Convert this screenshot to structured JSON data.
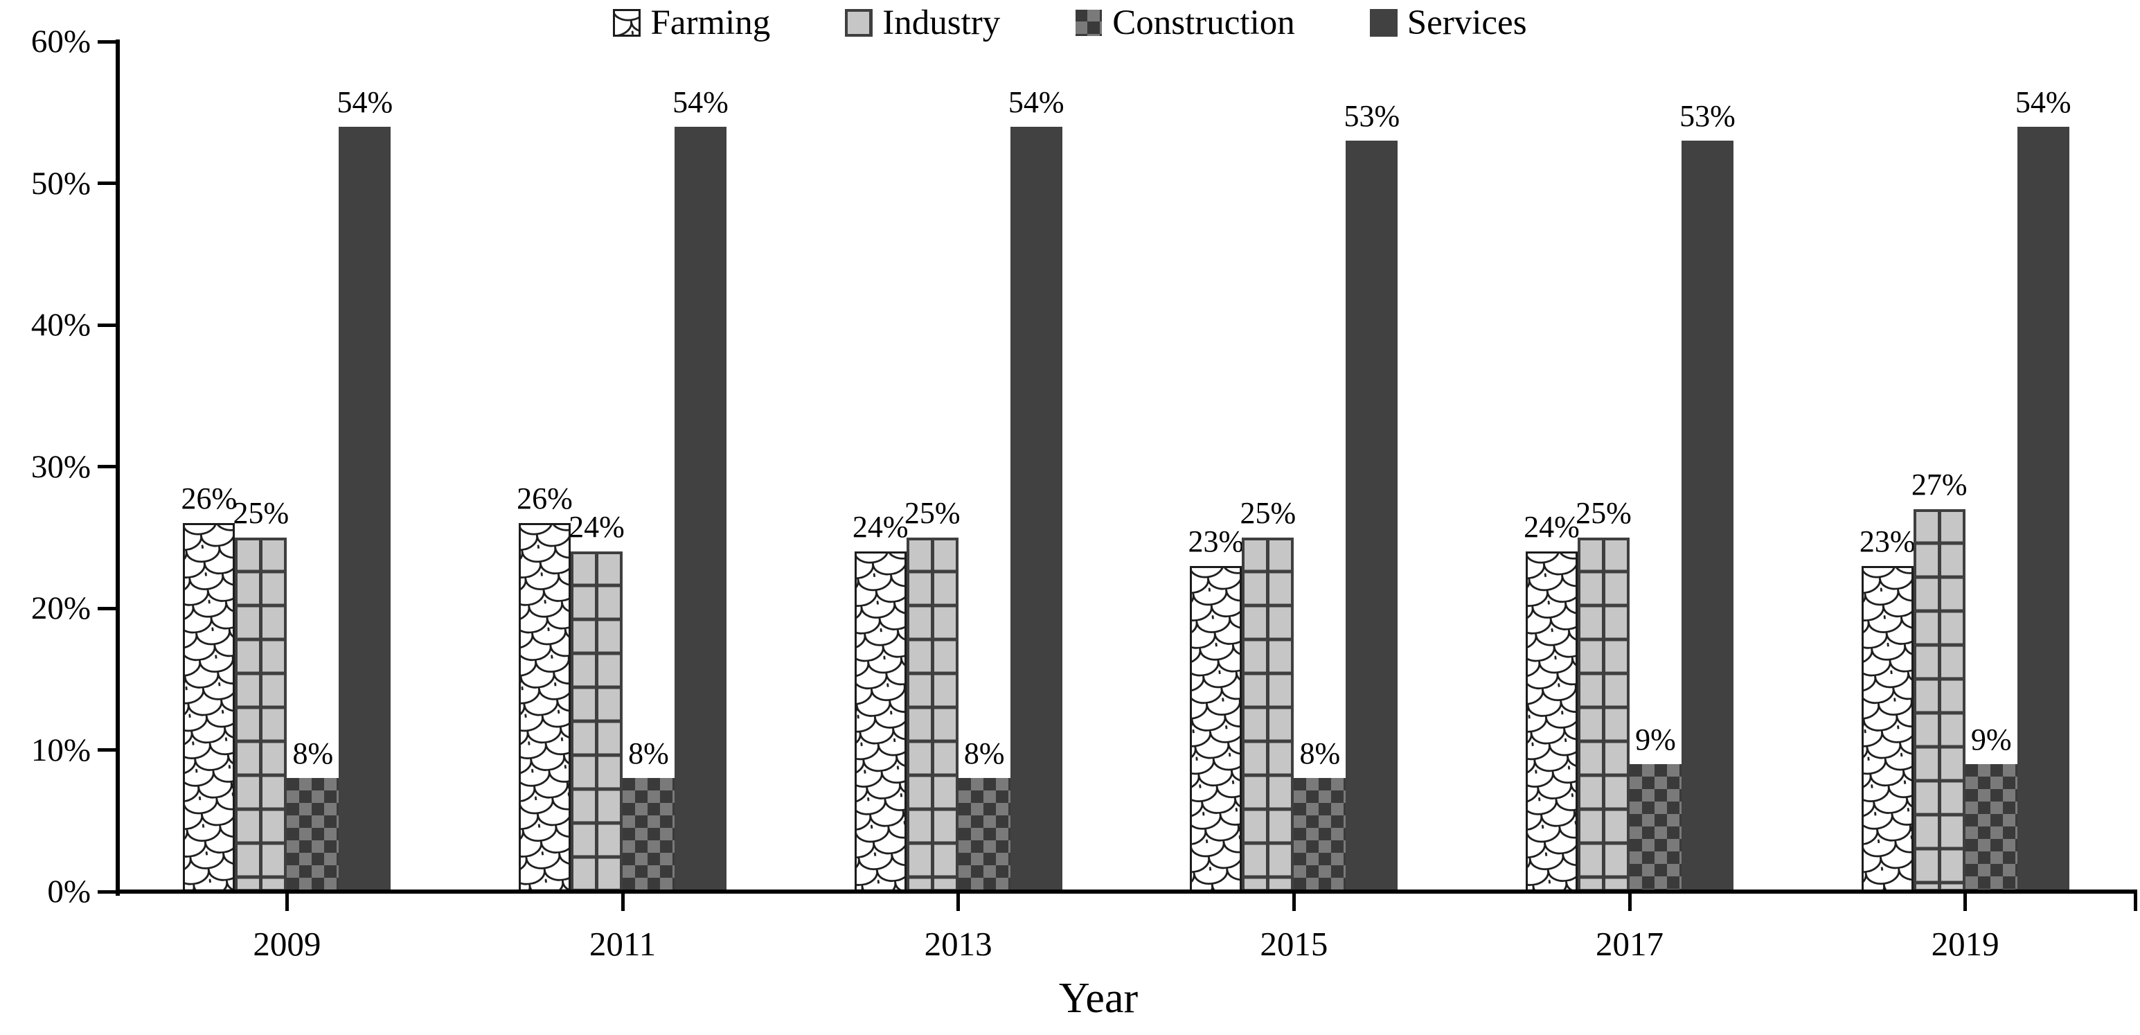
{
  "chart_data": {
    "type": "bar",
    "title": "",
    "xlabel": "Year",
    "ylabel": "",
    "ylim": [
      0,
      60
    ],
    "ytick_step": 10,
    "ytick_labels": [
      "0%",
      "10%",
      "20%",
      "30%",
      "40%",
      "50%",
      "60%"
    ],
    "categories": [
      "2009",
      "2011",
      "2013",
      "2015",
      "2017",
      "2019"
    ],
    "legend_position": "top",
    "grid": "off",
    "series": [
      {
        "name": "Farming",
        "pattern": "shingle",
        "values": [
          26,
          26,
          24,
          23,
          24,
          23
        ],
        "labels": [
          "26%",
          "26%",
          "24%",
          "23%",
          "24%",
          "23%"
        ]
      },
      {
        "name": "Industry",
        "pattern": "grid",
        "values": [
          25,
          24,
          25,
          25,
          25,
          27
        ],
        "labels": [
          "25%",
          "24%",
          "25%",
          "25%",
          "25%",
          "27%"
        ]
      },
      {
        "name": "Construction",
        "pattern": "checker",
        "values": [
          8,
          8,
          8,
          8,
          9,
          9
        ],
        "labels": [
          "8%",
          "8%",
          "8%",
          "8%",
          "9%",
          "9%"
        ]
      },
      {
        "name": "Services",
        "pattern": "solid",
        "values": [
          54,
          54,
          54,
          53,
          53,
          54
        ],
        "labels": [
          "54%",
          "54%",
          "54%",
          "53%",
          "53%",
          "54%"
        ]
      }
    ],
    "colors": {
      "services_fill": "#414141",
      "pattern_stroke": "#1c1c1c",
      "industry_fill": "#c6c6c6",
      "industry_line": "#3f3f3f",
      "checker_dark": "#3a3a3a",
      "checker_light": "#7a7a7a",
      "axis": "#000000",
      "text": "#000000",
      "background": "#ffffff"
    }
  }
}
